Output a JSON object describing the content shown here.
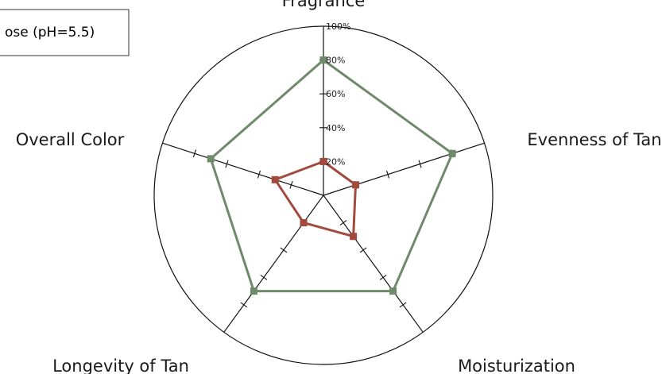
{
  "chart_data": {
    "type": "radar",
    "title": "",
    "axes": [
      "Fragrance",
      "Evenness of Tan",
      "Moisturization",
      "Longevity of Tan",
      "Overall Color"
    ],
    "axes_visible": [
      "",
      "Evenness of Tan",
      "Moisturization",
      "Longevity of Tan",
      "Overall Color"
    ],
    "radial_ticks": [
      "20%",
      "40%",
      "60%",
      "80%",
      "100%"
    ],
    "rmax": 100,
    "legend": {
      "placement": "top-left",
      "visible_text": "ose (pH=5.5)"
    },
    "series": [
      {
        "color": "#6f8a6a",
        "values": [
          80,
          80,
          70,
          70,
          70
        ]
      },
      {
        "color": "#a24a3e",
        "values": [
          20,
          20,
          30,
          20,
          30
        ]
      }
    ]
  }
}
